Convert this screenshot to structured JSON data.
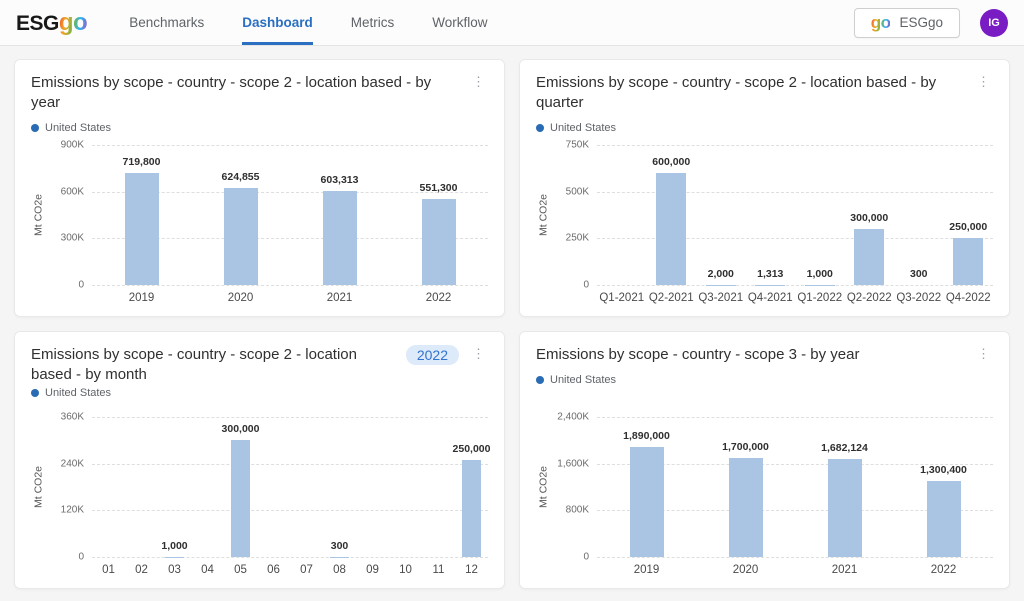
{
  "header": {
    "logo_esg": "ESG",
    "logo_go": "go",
    "nav": [
      {
        "label": "Benchmarks",
        "active": false
      },
      {
        "label": "Dashboard",
        "active": true
      },
      {
        "label": "Metrics",
        "active": false
      },
      {
        "label": "Workflow",
        "active": false
      }
    ],
    "account_button": {
      "logo": "go",
      "label": "ESGgo"
    },
    "avatar_initials": "IG"
  },
  "colors": {
    "accent_blue": "#2a6fc2",
    "bar_fill": "#a9c5e3",
    "legend_dot": "#2a6cb3",
    "badge_bg": "#ddeafa",
    "badge_text": "#3273cf",
    "avatar_bg": "#7a1cc4",
    "page_bg": "#f5f5f6",
    "card_bg": "#ffffff"
  },
  "kebab_icon": "⋮",
  "chart_data": [
    {
      "type": "bar",
      "title": "Emissions by scope - country - scope 2 - location based - by year",
      "legend": "United States",
      "ylabel": "Mt CO2e",
      "categories": [
        "2019",
        "2020",
        "2021",
        "2022"
      ],
      "values": [
        719800,
        624855,
        603313,
        551300
      ],
      "value_labels": [
        "719,800",
        "624,855",
        "603,313",
        "551,300"
      ],
      "yticks": [
        "900K",
        "600K",
        "300K",
        "0"
      ],
      "ymax": 900000,
      "grid": "dashed-horizontal",
      "legend_position": "top-left"
    },
    {
      "type": "bar",
      "title": "Emissions by scope - country - scope 2 - location based - by quarter",
      "legend": "United States",
      "ylabel": "Mt CO2e",
      "categories": [
        "Q1-2021",
        "Q2-2021",
        "Q3-2021",
        "Q4-2021",
        "Q1-2022",
        "Q2-2022",
        "Q3-2022",
        "Q4-2022"
      ],
      "values": [
        null,
        600000,
        2000,
        1313,
        1000,
        300000,
        300,
        250000
      ],
      "value_labels": [
        null,
        "600,000",
        "2,000",
        "1,313",
        "1,000",
        "300,000",
        "300",
        "250,000"
      ],
      "yticks": [
        "750K",
        "500K",
        "250K",
        "0"
      ],
      "ymax": 750000,
      "grid": "dashed-horizontal",
      "legend_position": "top-left"
    },
    {
      "type": "bar",
      "title": "Emissions by scope - country - scope 2 - location based - by month",
      "badge": "2022",
      "legend": "United States",
      "ylabel": "Mt CO2e",
      "categories": [
        "01",
        "02",
        "03",
        "04",
        "05",
        "06",
        "07",
        "08",
        "09",
        "10",
        "11",
        "12"
      ],
      "values": [
        null,
        null,
        1000,
        null,
        300000,
        null,
        null,
        300,
        null,
        null,
        null,
        250000
      ],
      "value_labels": [
        null,
        null,
        "1,000",
        null,
        "300,000",
        null,
        null,
        "300",
        null,
        null,
        null,
        "250,000"
      ],
      "yticks": [
        "360K",
        "240K",
        "120K",
        "0"
      ],
      "ymax": 360000,
      "grid": "dashed-horizontal",
      "legend_position": "top-left"
    },
    {
      "type": "bar",
      "title": "Emissions by scope - country - scope 3 - by year",
      "legend": "United States",
      "ylabel": "Mt CO2e",
      "categories": [
        "2019",
        "2020",
        "2021",
        "2022"
      ],
      "values": [
        1890000,
        1700000,
        1682124,
        1300400
      ],
      "value_labels": [
        "1,890,000",
        "1,700,000",
        "1,682,124",
        "1,300,400"
      ],
      "yticks": [
        "2,400K",
        "1,600K",
        "800K",
        "0"
      ],
      "ymax": 2400000,
      "grid": "dashed-horizontal",
      "legend_position": "top-left"
    }
  ]
}
